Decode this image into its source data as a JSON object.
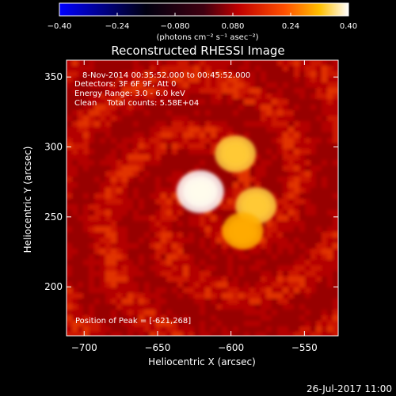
{
  "chart_data": {
    "type": "heatmap",
    "title": "Reconstructed RHESSI Image",
    "xlabel": "Heliocentric X (arcsec)",
    "ylabel": "Heliocentric Y (arcsec)",
    "xlim": [
      -712,
      -527
    ],
    "ylim": [
      165,
      362
    ],
    "x_ticks": [
      -700,
      -650,
      -600,
      -550
    ],
    "x_tick_labels": [
      "−700",
      "−650",
      "−600",
      "−550"
    ],
    "y_ticks": [
      200,
      250,
      300,
      350
    ],
    "y_tick_labels": [
      "200",
      "250",
      "300",
      "350"
    ],
    "colorbar": {
      "range": [
        -0.4,
        0.4
      ],
      "ticks": [
        -0.4,
        -0.24,
        -0.08,
        0.08,
        0.24,
        0.4
      ],
      "tick_labels": [
        "−0.40",
        "−0.24",
        "−0.080",
        "0.080",
        "0.24",
        "0.40"
      ],
      "unit_label": "(photons cm⁻² s⁻¹ asec⁻²)",
      "colors": [
        "#0000ff",
        "#000000",
        "#c00000",
        "#ff6000",
        "#ffd000",
        "#ffffff"
      ]
    },
    "annotations": [
      "8-Nov-2014 00:35:52.000 to 00:45:52.000",
      "Detectors: 3F 6F 9F, Att 0",
      "Energy Range: 3.0 - 6.0 keV",
      "Clean    Total counts: 5.58E+04"
    ],
    "peak_text": "Position of Peak = [-621,268]",
    "sources": [
      {
        "x": -621,
        "y": 268,
        "intensity": 0.4
      },
      {
        "x": -597,
        "y": 295,
        "intensity": 0.22
      },
      {
        "x": -583,
        "y": 258,
        "intensity": 0.22
      },
      {
        "x": -592,
        "y": 240,
        "intensity": 0.18
      }
    ],
    "background_level": 0.06,
    "grid": false
  },
  "footer": {
    "timestamp": "26-Jul-2017 11:00"
  }
}
